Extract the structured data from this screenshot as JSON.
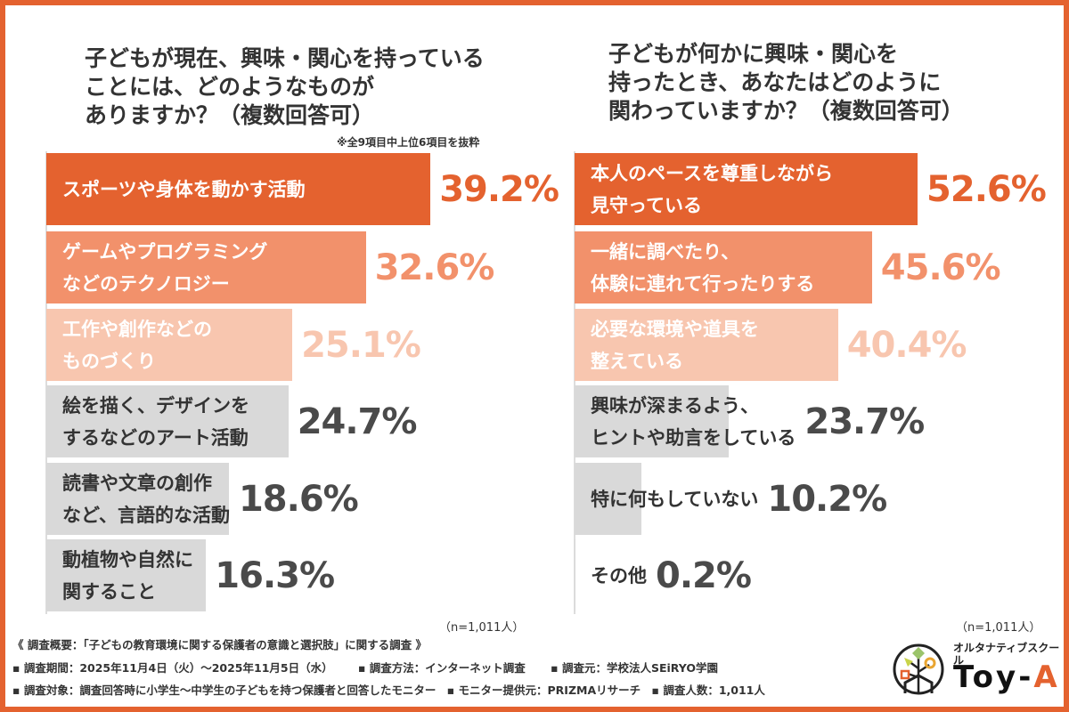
{
  "chart_data": [
    {
      "type": "bar",
      "orientation": "horizontal",
      "title": "子どもが現在、興味・関心を持っている\nことには、どのようなものが\nありますか？（複数回答可）",
      "note": "※全9項目中上位6項目を抜粋",
      "categories": [
        "スポーツや身体を動かす活動",
        "ゲームやプログラミング\nなどのテクノロジー",
        "工作や創作などの\nものづくり",
        "絵を描く、デザインを\nするなどのアート活動",
        "読書や文章の創作\nなど、言語的な活動",
        "動植物や自然に\n関すること"
      ],
      "values": [
        39.2,
        32.6,
        25.1,
        24.7,
        18.6,
        16.3
      ],
      "data_labels": [
        "39.2%",
        "32.6%",
        "25.1%",
        "24.7%",
        "18.6%",
        "16.3%"
      ],
      "sample": "（n=1,011人）"
    },
    {
      "type": "bar",
      "orientation": "horizontal",
      "title": "子どもが何かに興味・関心を\n持ったとき、あなたはどのように\n関わっていますか？（複数回答可）",
      "categories": [
        "本人のペースを尊重しながら\n見守っている",
        "一緒に調べたり、\n体験に連れて行ったりする",
        "必要な環境や道具を\n整えている",
        "興味が深まるよう、\nヒントや助言をしている",
        "特に何もしていない",
        "その他"
      ],
      "values": [
        52.6,
        45.6,
        40.4,
        23.7,
        10.2,
        0.2
      ],
      "data_labels": [
        "52.6%",
        "45.6%",
        "40.4%",
        "23.7%",
        "10.2%",
        "0.2%"
      ],
      "sample": "（n=1,011人）"
    }
  ],
  "colors": {
    "bars": [
      "#E4622F",
      "#F2916B",
      "#F8C6AF",
      "#D9D9D9",
      "#D9D9D9",
      "#D9D9D9"
    ],
    "percent_text": [
      "#E4622F",
      "#F2916B",
      "#F8C6AF",
      "#4a4a4a",
      "#4a4a4a",
      "#4a4a4a"
    ],
    "label_text": [
      "#ffffff",
      "#ffffff",
      "#ffffff",
      "#333333",
      "#333333",
      "#333333"
    ],
    "frame": "#E4622F"
  },
  "footer": {
    "summary": "《 調査概要：「子どもの教育環境に関する保護者の意識と選択肢」に関する調査 》",
    "period": "▪ 調査期間：2025年11月4日（火）～2025年11月5日（水）",
    "method": "▪ 調査方法：インターネット調査",
    "source": "▪ 調査元：学校法人SEiRYO学園",
    "target": "▪ 調査対象：調査回答時に小学生～中学生の子どもを持つ保護者と回答したモニター",
    "provider": "▪ モニター提供元：PRIZMAリサーチ",
    "count": "▪ 調査人数：1,011人"
  },
  "logo": {
    "tagline": "オルタナティブスクール",
    "name": "Toy-A"
  }
}
